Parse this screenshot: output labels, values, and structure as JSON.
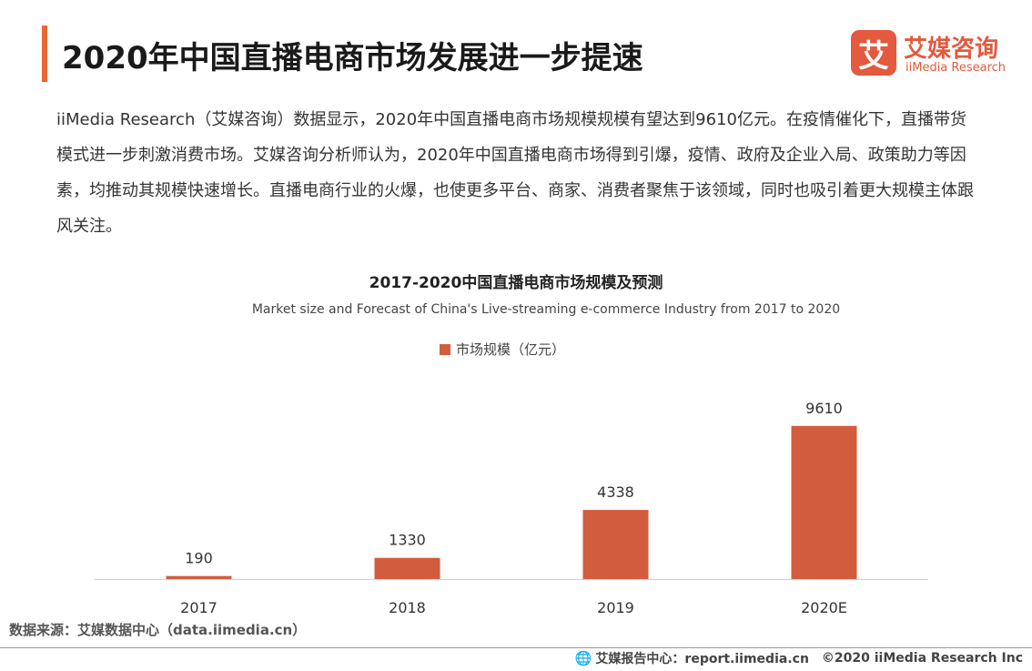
{
  "header": {
    "title": "2020年中国直播电商市场发展进一步提速",
    "logo_mark": "艾",
    "logo_cn": "艾媒咨询",
    "logo_en": "iiMedia Research"
  },
  "summary": "iiMedia Research（艾媒咨询）数据显示，2020年中国直播电商市场规模规模有望达到9610亿元。在疫情催化下，直播带货模式进一步刺激消费市场。艾媒咨询分析师认为，2020年中国直播电商市场得到引爆，疫情、政府及企业入局、政策助力等因素，均推动其规模快速增长。直播电商行业的火爆，也使更多平台、商家、消费者聚焦于该领域，同时也吸引着更大规模主体跟风关注。",
  "chart_data": {
    "type": "bar",
    "title": "2017-2020中国直播电商市场规模及预测",
    "subtitle": "Market size and Forecast of China's Live-streaming e-commerce Industry from 2017 to 2020",
    "categories": [
      "2017",
      "2018",
      "2019",
      "2020E"
    ],
    "series": [
      {
        "name": "市场规模（亿元）",
        "values": [
          190,
          1330,
          4338,
          9610
        ],
        "color": "#d25c3e"
      }
    ],
    "ylim": [
      0,
      10000
    ],
    "grid": false,
    "legend_position": "top-center"
  },
  "source": "数据来源：艾媒数据中心（data.iimedia.cn）",
  "footer": {
    "globe_icon": "globe-icon",
    "report_center": "艾媒报告中心：report.iimedia.cn",
    "copyright": "©2020  iiMedia Research  Inc"
  },
  "colors": {
    "accent": "#e8672f",
    "bar": "#d25c3e",
    "brand": "#e35a3e"
  }
}
